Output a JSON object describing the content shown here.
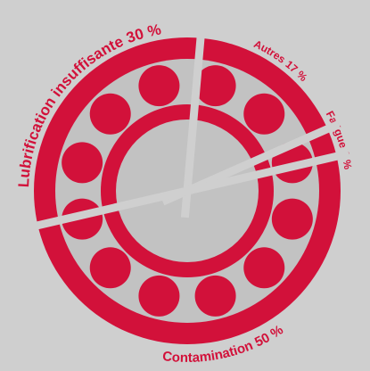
{
  "chart_data": {
    "type": "pie",
    "categories": [
      "Lubrification insuffisante",
      "Autres",
      "Fatigue",
      "Contamination"
    ],
    "values": [
      30,
      17,
      3,
      50
    ],
    "value_labels": [
      "30 %",
      "17 %",
      "3 %",
      "50 %"
    ],
    "color": "#d2113a"
  }
}
